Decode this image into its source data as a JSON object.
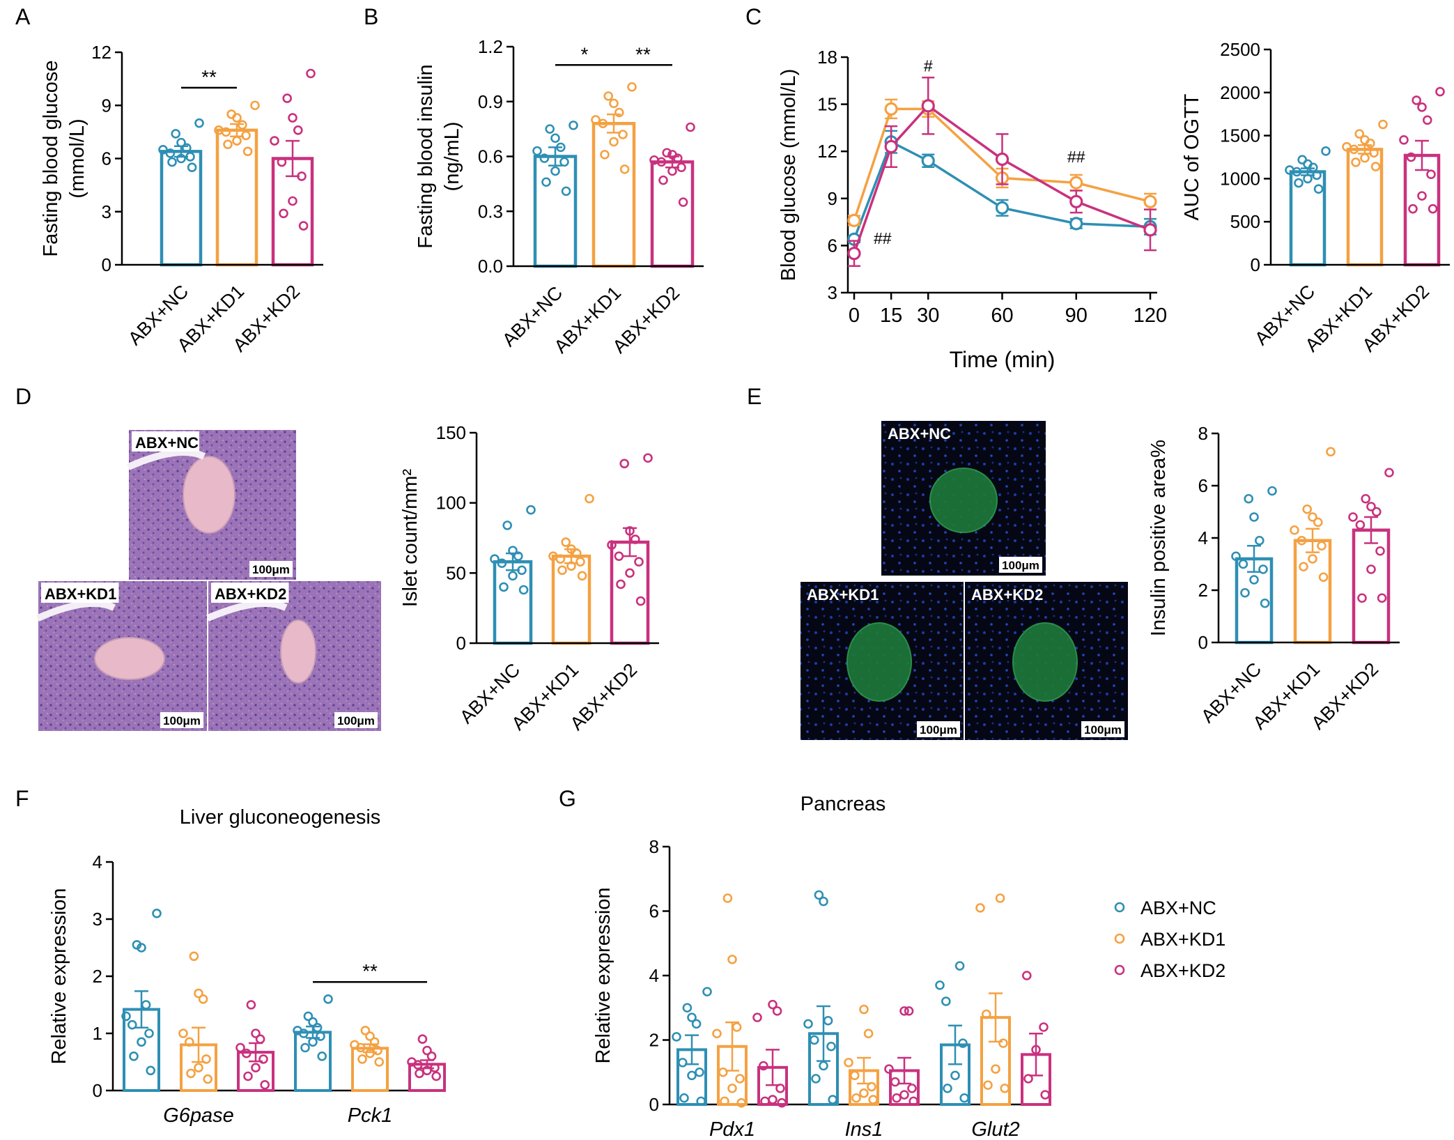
{
  "figure_labels": [
    "A",
    "B",
    "C",
    "D",
    "E",
    "F",
    "G"
  ],
  "colors": {
    "nc": "#2e8fb4",
    "kd1": "#f4a142",
    "kd2": "#c9317e",
    "axis": "#000000"
  },
  "legend": [
    {
      "key": "nc",
      "label": "ABX+NC"
    },
    {
      "key": "kd1",
      "label": "ABX+KD1"
    },
    {
      "key": "kd2",
      "label": "ABX+KD2"
    }
  ],
  "micrographs": {
    "he": [
      {
        "label": "ABX+NC",
        "scale": "100μm"
      },
      {
        "label": "ABX+KD1",
        "scale": "100μm"
      },
      {
        "label": "ABX+KD2",
        "scale": "100μm"
      }
    ],
    "if": [
      {
        "label": "ABX+NC",
        "scale": "100μm"
      },
      {
        "label": "ABX+KD1",
        "scale": "100μm"
      },
      {
        "label": "ABX+KD2",
        "scale": "100μm"
      }
    ]
  },
  "chart_data": [
    {
      "id": "A",
      "type": "bar",
      "title": "",
      "categories": [
        "ABX+NC",
        "ABX+KD1",
        "ABX+KD2"
      ],
      "ylabel": [
        "Fasting blood glucose",
        "(mmol/L)"
      ],
      "ylim": [
        0,
        12
      ],
      "yticks": [
        "0",
        "3",
        "6",
        "9",
        "12"
      ],
      "means": [
        6.4,
        7.6,
        6.0
      ],
      "sem": [
        0.3,
        0.35,
        1.0
      ],
      "points": [
        [
          5.5,
          5.8,
          6.0,
          6.1,
          6.3,
          6.5,
          6.6,
          6.9,
          7.4,
          8.0
        ],
        [
          6.4,
          6.8,
          7.0,
          7.3,
          7.5,
          7.6,
          7.9,
          8.3,
          8.5,
          9.0
        ],
        [
          2.2,
          2.9,
          3.6,
          5.0,
          5.8,
          7.0,
          7.6,
          8.3,
          9.4,
          10.8
        ]
      ],
      "annotations": [
        {
          "text": "**",
          "from": 0,
          "to": 1,
          "y": 10.0
        }
      ]
    },
    {
      "id": "B",
      "type": "bar",
      "title": "",
      "categories": [
        "ABX+NC",
        "ABX+KD1",
        "ABX+KD2"
      ],
      "ylabel": [
        "Fasting blood insulin",
        "(ng/mL)"
      ],
      "ylim": [
        0,
        1.2
      ],
      "yticks": [
        "0.0",
        "0.3",
        "0.6",
        "0.9",
        "1.2"
      ],
      "means": [
        0.6,
        0.78,
        0.57
      ],
      "sem": [
        0.05,
        0.05,
        0.03
      ],
      "points": [
        [
          0.41,
          0.46,
          0.52,
          0.57,
          0.59,
          0.63,
          0.65,
          0.7,
          0.75,
          0.77
        ],
        [
          0.53,
          0.61,
          0.68,
          0.72,
          0.78,
          0.8,
          0.84,
          0.89,
          0.93,
          0.98
        ],
        [
          0.35,
          0.47,
          0.52,
          0.54,
          0.57,
          0.58,
          0.59,
          0.61,
          0.62,
          0.76
        ]
      ],
      "annotations": [
        {
          "text": "*",
          "from": 0,
          "to": 1,
          "y": 1.1
        },
        {
          "text": "**",
          "from": 1,
          "to": 2,
          "y": 1.1
        }
      ]
    },
    {
      "id": "C1",
      "type": "line",
      "title": "",
      "xlabel": "Time (min)",
      "ylabel": [
        "Blood glucose (mmol/L)"
      ],
      "x": [
        0,
        15,
        30,
        60,
        90,
        120
      ],
      "xticks": [
        "0",
        "15",
        "30",
        "60",
        "90",
        "120"
      ],
      "ylim": [
        3,
        18
      ],
      "yticks": [
        "3",
        "6",
        "9",
        "12",
        "15",
        "18"
      ],
      "series": [
        {
          "key": "nc",
          "name": "ABX+NC",
          "values": [
            6.4,
            12.6,
            11.4,
            8.4,
            7.4,
            7.2
          ],
          "sem": [
            0.2,
            0.7,
            0.4,
            0.5,
            0.3,
            0.5
          ]
        },
        {
          "key": "kd1",
          "name": "ABX+KD1",
          "values": [
            7.6,
            14.7,
            14.7,
            10.3,
            10.0,
            8.8
          ],
          "sem": [
            0.3,
            0.6,
            0.5,
            0.6,
            0.5,
            0.5
          ]
        },
        {
          "key": "kd2",
          "name": "ABX+KD2",
          "values": [
            5.5,
            12.3,
            14.9,
            11.5,
            8.8,
            7.0
          ],
          "sem": [
            0.8,
            1.3,
            1.8,
            1.6,
            0.7,
            1.3
          ]
        }
      ],
      "annotations": [
        {
          "text": "##",
          "x": 0,
          "y": 6.1
        },
        {
          "text": "#",
          "x": 30,
          "y": 17.1
        },
        {
          "text": "##",
          "x": 90,
          "y": 11.3
        }
      ]
    },
    {
      "id": "C2",
      "type": "bar",
      "title": "",
      "categories": [
        "ABX+NC",
        "ABX+KD1",
        "ABX+KD2"
      ],
      "ylabel": [
        "AUC of OGTT"
      ],
      "ylim": [
        0,
        2500
      ],
      "yticks": [
        "0",
        "500",
        "1000",
        "1500",
        "2000",
        "2500"
      ],
      "means": [
        1080,
        1340,
        1270
      ],
      "sem": [
        40,
        50,
        170
      ],
      "points": [
        [
          880,
          950,
          1000,
          1040,
          1080,
          1100,
          1130,
          1170,
          1220,
          1320
        ],
        [
          1140,
          1190,
          1240,
          1300,
          1340,
          1370,
          1410,
          1450,
          1520,
          1630
        ],
        [
          650,
          650,
          800,
          1050,
          1250,
          1450,
          1680,
          1830,
          1910,
          2010
        ]
      ],
      "annotations": []
    },
    {
      "id": "D",
      "type": "bar",
      "title": "",
      "categories": [
        "ABX+NC",
        "ABX+KD1",
        "ABX+KD2"
      ],
      "ylabel": [
        "Islet count/mm²"
      ],
      "ylim": [
        0,
        150
      ],
      "yticks": [
        "0",
        "50",
        "100",
        "150"
      ],
      "means": [
        58,
        62,
        72
      ],
      "sem": [
        6,
        5,
        10
      ],
      "points": [
        [
          38,
          40,
          48,
          52,
          57,
          60,
          62,
          66,
          84,
          95
        ],
        [
          48,
          52,
          55,
          58,
          60,
          62,
          64,
          67,
          72,
          103
        ],
        [
          30,
          42,
          50,
          58,
          62,
          70,
          74,
          80,
          128,
          132
        ]
      ],
      "annotations": []
    },
    {
      "id": "E",
      "type": "bar",
      "title": "",
      "categories": [
        "ABX+NC",
        "ABX+KD1",
        "ABX+KD2"
      ],
      "ylabel": [
        "Insulin positive area%"
      ],
      "ylim": [
        0,
        8
      ],
      "yticks": [
        "0",
        "2",
        "4",
        "6",
        "8"
      ],
      "means": [
        3.2,
        3.9,
        4.3
      ],
      "sem": [
        0.5,
        0.45,
        0.5
      ],
      "points": [
        [
          1.5,
          1.9,
          2.4,
          2.8,
          3.0,
          3.3,
          3.9,
          4.8,
          5.5,
          5.8
        ],
        [
          2.5,
          2.9,
          3.2,
          3.7,
          3.9,
          4.3,
          4.6,
          4.8,
          5.1,
          7.3
        ],
        [
          1.7,
          1.7,
          2.8,
          3.5,
          4.5,
          4.8,
          5.0,
          5.2,
          5.5,
          6.5
        ]
      ],
      "annotations": []
    },
    {
      "id": "F",
      "type": "bar",
      "title": "Liver gluconeogenesis",
      "categories": [
        "G6pase",
        "Pck1"
      ],
      "ylabel": [
        "Relative expression"
      ],
      "ylim": [
        0,
        4
      ],
      "yticks": [
        "0",
        "1",
        "2",
        "3",
        "4"
      ],
      "series": [
        {
          "key": "nc",
          "name": "ABX+NC",
          "means": [
            1.42,
            1.02
          ],
          "sem": [
            0.32,
            0.1
          ],
          "points": [
            [
              0.35,
              0.6,
              0.85,
              1.0,
              1.15,
              1.3,
              1.5,
              2.5,
              2.55,
              3.1
            ],
            [
              0.6,
              0.75,
              0.85,
              0.95,
              1.0,
              1.05,
              1.1,
              1.2,
              1.3,
              1.6
            ]
          ]
        },
        {
          "key": "kd1",
          "name": "ABX+KD1",
          "means": [
            0.8,
            0.74
          ],
          "sem": [
            0.3,
            0.07
          ],
          "points": [
            [
              0.2,
              0.3,
              0.4,
              0.55,
              0.85,
              1.0,
              1.6,
              1.7,
              2.35
            ],
            [
              0.5,
              0.55,
              0.65,
              0.7,
              0.75,
              0.8,
              0.85,
              0.95,
              1.05
            ]
          ]
        },
        {
          "key": "kd2",
          "name": "ABX+KD2",
          "means": [
            0.67,
            0.46
          ],
          "sem": [
            0.16,
            0.07
          ],
          "points": [
            [
              0.1,
              0.25,
              0.4,
              0.55,
              0.65,
              0.75,
              0.9,
              1.0,
              1.5
            ],
            [
              0.25,
              0.3,
              0.35,
              0.4,
              0.45,
              0.5,
              0.6,
              0.7,
              0.9
            ]
          ]
        }
      ],
      "annotations": [
        {
          "text": "**",
          "group": 1,
          "from": 0,
          "to": 2,
          "y": 1.9
        }
      ]
    },
    {
      "id": "G",
      "type": "bar",
      "title": "Pancreas",
      "categories": [
        "Pdx1",
        "Ins1",
        "Glut2"
      ],
      "ylabel": [
        "Relative expression"
      ],
      "ylim": [
        0,
        8
      ],
      "yticks": [
        "0",
        "2",
        "4",
        "6",
        "8"
      ],
      "series": [
        {
          "key": "nc",
          "name": "ABX+NC",
          "means": [
            1.7,
            2.2,
            1.85
          ],
          "sem": [
            0.45,
            0.85,
            0.6
          ],
          "points": [
            [
              0.1,
              0.2,
              0.9,
              1.0,
              1.3,
              2.1,
              2.5,
              2.7,
              3.0,
              3.5
            ],
            [
              0.15,
              0.8,
              1.2,
              1.8,
              2.0,
              2.5,
              2.6,
              6.3,
              6.5
            ],
            [
              0.2,
              0.5,
              0.9,
              1.9,
              3.2,
              3.7,
              4.3
            ]
          ]
        },
        {
          "key": "kd1",
          "name": "ABX+KD1",
          "means": [
            1.8,
            1.05
          ],
          "sem": [
            0.75,
            0.4
          ],
          "points": [
            [
              0.05,
              0.1,
              0.5,
              0.8,
              1.0,
              2.2,
              2.4,
              4.5,
              6.4
            ],
            [
              0.15,
              0.2,
              0.35,
              0.55,
              0.9,
              1.3,
              2.2,
              2.95
            ]
          ]
        },
        {
          "key": "kd2",
          "name": "ABX+KD2",
          "means": [
            1.15,
            1.05
          ],
          "sem": [
            0.55,
            0.4
          ],
          "points": [
            [
              0.05,
              0.1,
              0.15,
              0.5,
              1.2,
              2.7,
              2.9,
              3.1
            ],
            [
              0.1,
              0.2,
              0.3,
              0.5,
              0.7,
              1.1,
              2.9,
              2.9
            ]
          ]
        }
      ],
      "extra": {
        "glut2_kd1_mean": 2.7,
        "glut2_kd1_sem": 0.75,
        "glut2_kd1_points": [
          0.5,
          0.6,
          1.1,
          1.9,
          2.8,
          6.1,
          6.4
        ],
        "glut2_kd2_mean": 1.55,
        "glut2_kd2_sem": 0.65,
        "glut2_kd2_points": [
          0.3,
          0.8,
          1.7,
          2.4,
          4.0
        ]
      },
      "annotations": []
    }
  ]
}
